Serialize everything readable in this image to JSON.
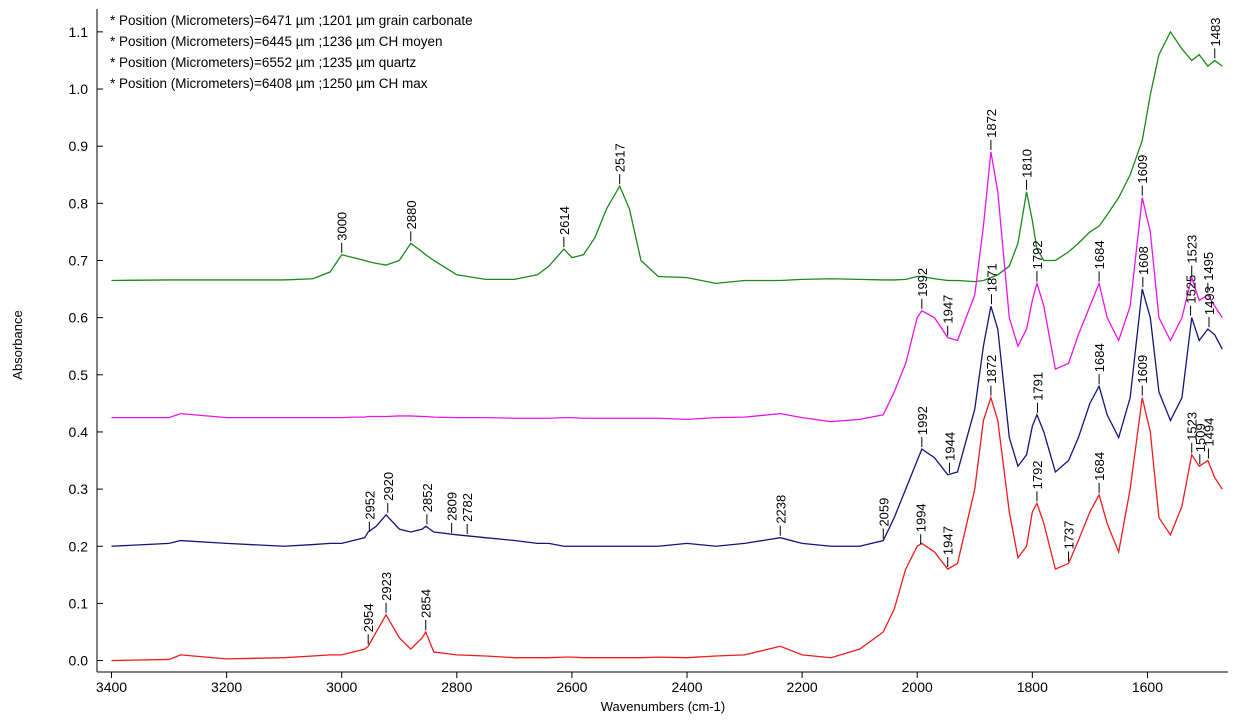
{
  "chart_data": {
    "type": "line",
    "x_label": "Wavenumbers (cm-1)",
    "y_label": "Absorbance",
    "xlim": [
      3420,
      1460
    ],
    "ylim": [
      -0.02,
      1.14
    ],
    "xticks": [
      3400,
      3200,
      3000,
      2800,
      2600,
      2400,
      2200,
      2000,
      1800,
      1600
    ],
    "yticks": [
      {
        "value": 0,
        "label": "0.0"
      },
      0.1,
      0.2,
      0.3,
      0.4,
      0.5,
      0.6,
      0.7,
      0.8,
      0.9,
      {
        "value": 1,
        "label": "1.0"
      },
      1.1
    ],
    "legend": "top-left",
    "x": [
      3400,
      3300,
      3280,
      3200,
      3100,
      3050,
      3020,
      3000,
      2980,
      2960,
      2954,
      2940,
      2923,
      2900,
      2880,
      2860,
      2854,
      2840,
      2800,
      2750,
      2700,
      2660,
      2640,
      2614,
      2600,
      2580,
      2560,
      2540,
      2517,
      2500,
      2480,
      2450,
      2400,
      2350,
      2300,
      2238,
      2200,
      2150,
      2100,
      2059,
      2040,
      2020,
      2000,
      1992,
      1970,
      1947,
      1930,
      1900,
      1885,
      1872,
      1860,
      1840,
      1825,
      1810,
      1800,
      1792,
      1780,
      1760,
      1737,
      1720,
      1700,
      1684,
      1670,
      1650,
      1630,
      1609,
      1595,
      1580,
      1560,
      1540,
      1523,
      1510,
      1495,
      1483,
      1470
    ],
    "series": [
      {
        "name": "* Position (Micrometers)=6471 µm ;1201 µm grain carbonate",
        "color": "#1a8a1a",
        "values": [
          0.665,
          0.666,
          0.666,
          0.666,
          0.666,
          0.668,
          0.68,
          0.71,
          0.705,
          0.7,
          0.698,
          0.695,
          0.692,
          0.7,
          0.73,
          0.715,
          0.71,
          0.7,
          0.675,
          0.667,
          0.667,
          0.675,
          0.69,
          0.72,
          0.705,
          0.71,
          0.74,
          0.79,
          0.83,
          0.79,
          0.7,
          0.672,
          0.67,
          0.66,
          0.665,
          0.665,
          0.667,
          0.668,
          0.667,
          0.666,
          0.666,
          0.667,
          0.672,
          0.672,
          0.668,
          0.665,
          0.665,
          0.663,
          0.665,
          0.67,
          0.675,
          0.69,
          0.73,
          0.82,
          0.77,
          0.72,
          0.7,
          0.7,
          0.715,
          0.73,
          0.75,
          0.76,
          0.78,
          0.81,
          0.85,
          0.91,
          0.99,
          1.06,
          1.1,
          1.07,
          1.05,
          1.06,
          1.04,
          1.05,
          1.04
        ]
      },
      {
        "name": "* Position (Micrometers)=6445 µm ;1236 µm CH moyen",
        "color": "#14147a",
        "values": [
          0.2,
          0.205,
          0.21,
          0.205,
          0.2,
          0.203,
          0.205,
          0.205,
          0.21,
          0.215,
          0.225,
          0.235,
          0.255,
          0.23,
          0.225,
          0.23,
          0.235,
          0.225,
          0.22,
          0.215,
          0.21,
          0.205,
          0.205,
          0.2,
          0.2,
          0.2,
          0.2,
          0.2,
          0.2,
          0.2,
          0.2,
          0.2,
          0.205,
          0.2,
          0.205,
          0.215,
          0.205,
          0.2,
          0.2,
          0.21,
          0.25,
          0.3,
          0.35,
          0.37,
          0.355,
          0.325,
          0.33,
          0.44,
          0.55,
          0.62,
          0.58,
          0.39,
          0.34,
          0.36,
          0.41,
          0.43,
          0.4,
          0.33,
          0.35,
          0.39,
          0.45,
          0.48,
          0.43,
          0.39,
          0.46,
          0.65,
          0.6,
          0.47,
          0.42,
          0.46,
          0.6,
          0.56,
          0.58,
          0.57,
          0.545
        ]
      },
      {
        "name": "* Position (Micrometers)=6552 µm ;1235 µm quartz",
        "color": "#e815e8",
        "values": [
          0.425,
          0.425,
          0.432,
          0.425,
          0.425,
          0.425,
          0.425,
          0.425,
          0.426,
          0.426,
          0.427,
          0.427,
          0.427,
          0.428,
          0.428,
          0.427,
          0.427,
          0.426,
          0.425,
          0.425,
          0.424,
          0.424,
          0.424,
          0.425,
          0.425,
          0.424,
          0.424,
          0.424,
          0.424,
          0.424,
          0.424,
          0.424,
          0.422,
          0.425,
          0.426,
          0.432,
          0.425,
          0.418,
          0.422,
          0.43,
          0.47,
          0.52,
          0.6,
          0.612,
          0.6,
          0.565,
          0.56,
          0.64,
          0.76,
          0.89,
          0.82,
          0.6,
          0.55,
          0.58,
          0.63,
          0.66,
          0.62,
          0.51,
          0.52,
          0.57,
          0.62,
          0.66,
          0.6,
          0.56,
          0.62,
          0.81,
          0.75,
          0.6,
          0.56,
          0.6,
          0.67,
          0.63,
          0.64,
          0.62,
          0.6
        ]
      },
      {
        "name": "* Position (Micrometers)=6408 µm ;1250 µm CH max",
        "color": "#ee1c1c",
        "values": [
          0,
          0.002,
          0.01,
          0.003,
          0.005,
          0.008,
          0.01,
          0.01,
          0.015,
          0.02,
          0.025,
          0.05,
          0.08,
          0.04,
          0.02,
          0.04,
          0.05,
          0.015,
          0.01,
          0.008,
          0.005,
          0.005,
          0.005,
          0.006,
          0.006,
          0.005,
          0.005,
          0.005,
          0.005,
          0.005,
          0.005,
          0.006,
          0.005,
          0.008,
          0.01,
          0.025,
          0.01,
          0.005,
          0.02,
          0.05,
          0.09,
          0.16,
          0.2,
          0.205,
          0.19,
          0.16,
          0.17,
          0.3,
          0.42,
          0.46,
          0.42,
          0.26,
          0.18,
          0.2,
          0.26,
          0.275,
          0.24,
          0.16,
          0.17,
          0.21,
          0.26,
          0.29,
          0.24,
          0.19,
          0.3,
          0.46,
          0.4,
          0.25,
          0.22,
          0.27,
          0.36,
          0.34,
          0.35,
          0.32,
          0.3
        ]
      }
    ],
    "annotations": [
      {
        "x": 3000,
        "y": 0.71
      },
      {
        "x": 2880,
        "y": 0.73
      },
      {
        "x": 2614,
        "y": 0.72
      },
      {
        "x": 2517,
        "y": 0.83
      },
      {
        "x": 1810,
        "y": 0.82
      },
      {
        "x": 1483,
        "y": 1.05
      },
      {
        "x": 1992,
        "y": 0.612
      },
      {
        "x": 1947,
        "y": 0.565
      },
      {
        "x": 1872,
        "y": 0.89
      },
      {
        "x": 1792,
        "y": 0.66
      },
      {
        "x": 1684,
        "y": 0.66
      },
      {
        "x": 1609,
        "y": 0.81
      },
      {
        "x": 1523,
        "y": 0.67
      },
      {
        "x": 1495,
        "y": 0.64
      },
      {
        "x": 2952,
        "y": 0.222
      },
      {
        "x": 2920,
        "y": 0.255
      },
      {
        "x": 2852,
        "y": 0.235
      },
      {
        "x": 2809,
        "y": 0.22
      },
      {
        "x": 2782,
        "y": 0.218
      },
      {
        "x": 2238,
        "y": 0.215
      },
      {
        "x": 2059,
        "y": 0.21
      },
      {
        "x": 1992,
        "y": 0.37
      },
      {
        "x": 1944,
        "y": 0.325
      },
      {
        "x": 1871,
        "y": 0.62
      },
      {
        "x": 1791,
        "y": 0.43
      },
      {
        "x": 1684,
        "y": 0.48
      },
      {
        "x": 1608,
        "y": 0.65
      },
      {
        "x": 1525,
        "y": 0.6
      },
      {
        "x": 1493,
        "y": 0.58
      },
      {
        "x": 2954,
        "y": 0.025
      },
      {
        "x": 2923,
        "y": 0.08
      },
      {
        "x": 2854,
        "y": 0.05
      },
      {
        "x": 1994,
        "y": 0.2
      },
      {
        "x": 1947,
        "y": 0.16
      },
      {
        "x": 1872,
        "y": 0.46
      },
      {
        "x": 1792,
        "y": 0.275
      },
      {
        "x": 1684,
        "y": 0.29
      },
      {
        "x": 1609,
        "y": 0.46
      },
      {
        "x": 1523,
        "y": 0.36
      },
      {
        "x": 1509,
        "y": 0.34
      },
      {
        "x": 1494,
        "y": 0.35
      },
      {
        "x": 1737,
        "y": 0.17
      }
    ]
  }
}
